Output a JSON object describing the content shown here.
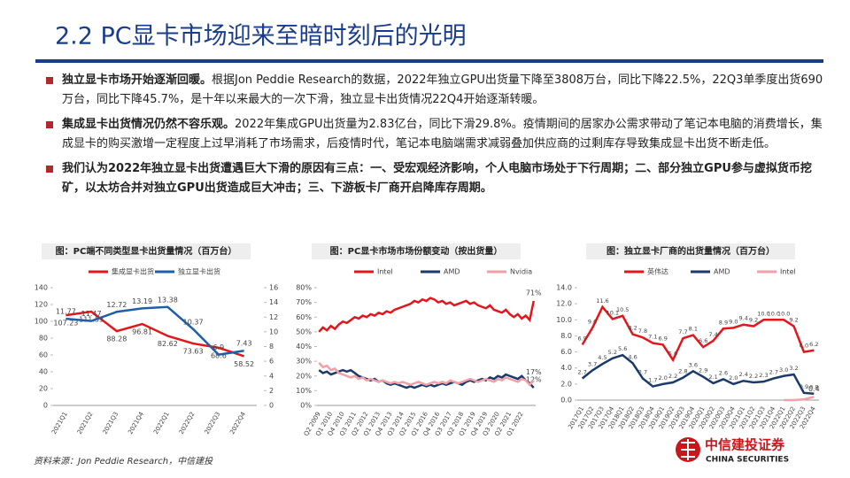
{
  "header": {
    "title": "2.2 PC显卡市场迎来至暗时刻后的光明"
  },
  "bullets": [
    {
      "bold": "独立显卡市场开始逐渐回暖。",
      "text": "根据Jon Peddie Research的数据，2022年独立GPU出货量下降至3808万台，同比下降22.5%，22Q3单季度出货690万台，同比下降45.7%，是十年以来最大的一次下滑，独立显卡出货情况22Q4开始逐渐转暖。"
    },
    {
      "bold": "集成显卡出货情况仍然不容乐观。",
      "text": "2022年集成GPU出货量为2.83亿台，同比下滑29.8%。疫情期间的居家办公需求带动了笔记本电脑的消费增长，集成显卡的购买激增一定程度上过早消耗了市场需求，后疫情时代，笔记本电脑端需求减弱叠加供应商的过剩库存导致集成显卡出货不断走低。"
    },
    {
      "bold": "我们认为2022年独立显卡出货遭遇巨大下滑的原因有三点：一、受宏观经济影响，个人电脑市场处于下行周期；二、部分独立GPU参与虚拟货币挖矿，以太坊合并对独立GPU出货造成巨大冲击；三、下游板卡厂商开启降库存周期。"
    }
  ],
  "chart_data": [
    {
      "type": "line",
      "title": "图：PC端不同类型显卡出货量情况（百万台）",
      "point_labels": true,
      "categories": [
        "2021Q1",
        "2021Q2",
        "2021Q3",
        "2021Q4",
        "2022Q1",
        "2022Q2",
        "2022Q3",
        "2022Q4"
      ],
      "series": [
        {
          "name": "集成显卡出货",
          "color": "#e3171b",
          "values": [
            107.23,
            111.53,
            88.28,
            96.81,
            82.62,
            73.63,
            68.6,
            58.52
          ]
        },
        {
          "name": "独立显卡出货",
          "color": "#1f5fa8",
          "axis": "y2",
          "values": [
            11.77,
            11.47,
            12.72,
            13.19,
            13.38,
            10.37,
            6.9,
            7.43
          ]
        }
      ],
      "ylim": [
        0,
        140
      ],
      "yticks": [
        0,
        20,
        40,
        60,
        80,
        100,
        120,
        140
      ],
      "y2lim": [
        0,
        16
      ],
      "y2ticks": [
        0,
        2,
        4,
        6,
        8,
        10,
        12,
        14,
        16
      ]
    },
    {
      "type": "line",
      "title": "图：PC显卡市场市场份额变动（按出货量）",
      "categories": [
        "Q2 2009",
        null,
        null,
        "Q1 2010",
        null,
        null,
        "Q4 2010",
        null,
        null,
        "Q3 2011",
        null,
        null,
        "Q2 2012",
        null,
        null,
        "Q1 2013",
        null,
        null,
        "Q4 2013",
        null,
        null,
        "Q3 2014",
        null,
        null,
        "Q2 2015",
        null,
        null,
        "Q1 2016",
        null,
        null,
        "Q4 2016",
        null,
        null,
        "Q3 2017",
        null,
        null,
        "Q2 2018",
        null,
        null,
        "Q1 2019",
        null,
        null,
        "Q4 2019",
        null,
        null,
        "Q3 2020",
        null,
        null,
        "Q2 2021",
        null,
        null,
        "Q1 2022",
        null,
        null,
        null
      ],
      "series": [
        {
          "name": "Intel",
          "color": "#e3171b",
          "end_label": "71%",
          "values": [
            50,
            53,
            51,
            54,
            52,
            55,
            57,
            56,
            58,
            60,
            59,
            61,
            60,
            62,
            61,
            63,
            62,
            64,
            63,
            65,
            66,
            67,
            68,
            69,
            71,
            70,
            72,
            71,
            73,
            72,
            70,
            71,
            69,
            70,
            68,
            69,
            70,
            71,
            69,
            70,
            68,
            67,
            66,
            68,
            65,
            64,
            63,
            65,
            62,
            60,
            62,
            59,
            61,
            58,
            71
          ]
        },
        {
          "name": "AMD",
          "color": "#1a3a6b",
          "end_label": "12%",
          "values": [
            24,
            22,
            23,
            21,
            22,
            23,
            24,
            23,
            24,
            22,
            20,
            19,
            18,
            17,
            18,
            16,
            17,
            15,
            14,
            15,
            14,
            13,
            12,
            13,
            12,
            13,
            14,
            13,
            14,
            13,
            14,
            15,
            14,
            15,
            16,
            15,
            14,
            16,
            17,
            16,
            17,
            18,
            17,
            19,
            18,
            20,
            19,
            21,
            20,
            19,
            18,
            20,
            17,
            15,
            12
          ]
        },
        {
          "name": "Nvidia",
          "color": "#f0a0a8",
          "end_label": "17%",
          "values": [
            29,
            26,
            27,
            24,
            25,
            22,
            21,
            20,
            19,
            20,
            18,
            19,
            17,
            18,
            17,
            16,
            17,
            16,
            15,
            16,
            15,
            16,
            15,
            14,
            15,
            16,
            15,
            14,
            15,
            16,
            15,
            16,
            15,
            17,
            16,
            15,
            16,
            17,
            18,
            17,
            16,
            17,
            18,
            17,
            16,
            18,
            17,
            19,
            18,
            17,
            16,
            18,
            17,
            14,
            17
          ]
        }
      ],
      "ylim": [
        0,
        80
      ],
      "yticks": [
        {
          "value": 0,
          "label": "0%"
        },
        {
          "value": 10,
          "label": "10%"
        },
        {
          "value": 20,
          "label": "20%"
        },
        {
          "value": 30,
          "label": "30%"
        },
        {
          "value": 40,
          "label": "40%"
        },
        {
          "value": 50,
          "label": "50%"
        },
        {
          "value": 60,
          "label": "60%"
        },
        {
          "value": 70,
          "label": "70%"
        },
        {
          "value": 80,
          "label": "80%"
        }
      ]
    },
    {
      "type": "line",
      "title": "图：独立显卡厂商的出货量情况（百万台）",
      "categories": [
        "2017Q1",
        "2017Q2",
        "2017Q3",
        "2017Q4",
        "2018Q1",
        "2018Q2",
        "2018Q3",
        "2018Q4",
        "2019Q1",
        "2019Q2",
        "2019Q3",
        "2019Q4",
        "2020Q1",
        "2020Q2",
        "2020Q3",
        "2020Q4",
        "2021Q1",
        "2021Q2",
        "2021Q3",
        "2021Q4",
        "2022Q1",
        "2022Q2",
        "2022Q3",
        "2022Q4"
      ],
      "series": [
        {
          "name": "英伟达",
          "color": "#e3171b",
          "values": [
            6.9,
            9.0,
            11.6,
            10.1,
            10.5,
            8.2,
            7.8,
            7.1,
            6.9,
            5.0,
            7.7,
            8.1,
            6.6,
            7.4,
            8.9,
            9.0,
            9.4,
            9.2,
            10.0,
            10.0,
            10.0,
            9.2,
            6.0,
            6.2
          ],
          "value_labels": [
            "6.9",
            "9.0",
            "11.6",
            "10.1",
            "10.5",
            "8.2",
            "7.8",
            "7.1",
            "6.9",
            "5.0",
            "7.7",
            "8.1",
            "6.6",
            "7.4",
            "8.9",
            "9.0",
            "9.4",
            "9.2",
            "10.0",
            "10.0",
            "10.0",
            "9.2",
            "6.0",
            "6.2"
          ]
        },
        {
          "name": "AMD",
          "color": "#1a3a6b",
          "values": [
            2.7,
            3.7,
            4.5,
            5.2,
            5.6,
            4.6,
            2.7,
            1.7,
            2.0,
            2.2,
            2.8,
            3.6,
            2.9,
            2.1,
            2.6,
            2.0,
            2.4,
            2.2,
            2.3,
            2.7,
            3.0,
            3.2,
            0.9,
            0.8
          ],
          "value_labels": [
            "2.7",
            "3.7",
            "4.5",
            "5.2",
            "5.6",
            "4.6",
            "2.7",
            "1.7",
            "2.0",
            "2.2",
            "2.8",
            "3.6",
            "2.9",
            "2.1",
            "2.6",
            "2.0",
            "2.4",
            "2.2",
            "2.3",
            "2.7",
            "3.0",
            "3.2",
            "0.9",
            "0.8"
          ]
        },
        {
          "name": "Intel",
          "color": "#f0a0a8",
          "end_label": "0.4",
          "values": [
            null,
            null,
            null,
            null,
            null,
            null,
            null,
            null,
            null,
            null,
            null,
            null,
            null,
            null,
            null,
            null,
            null,
            null,
            null,
            null,
            0,
            0,
            0.1,
            0.4
          ]
        }
      ],
      "ylim": [
        0,
        14
      ],
      "yticks": [
        {
          "value": 0,
          "label": "0.0"
        },
        {
          "value": 2,
          "label": "2.0"
        },
        {
          "value": 4,
          "label": "4.0"
        },
        {
          "value": 6,
          "label": "6.0"
        },
        {
          "value": 8,
          "label": "8.0"
        },
        {
          "value": 10,
          "label": "10.0"
        },
        {
          "value": 12,
          "label": "12.0"
        },
        {
          "value": 14,
          "label": "14.0"
        }
      ]
    }
  ],
  "footer": {
    "source": "资料来源：Jon Peddie Research，中信建投",
    "logo_cn": "中信建投证券",
    "logo_en": "CHINA SECURITIES"
  }
}
